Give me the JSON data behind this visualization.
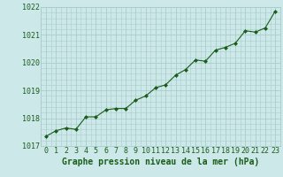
{
  "x": [
    0,
    1,
    2,
    3,
    4,
    5,
    6,
    7,
    8,
    9,
    10,
    11,
    12,
    13,
    14,
    15,
    16,
    17,
    18,
    19,
    20,
    21,
    22,
    23
  ],
  "y": [
    1017.35,
    1017.55,
    1017.65,
    1017.6,
    1018.05,
    1018.05,
    1018.3,
    1018.35,
    1018.35,
    1018.65,
    1018.8,
    1019.1,
    1019.2,
    1019.55,
    1019.75,
    1020.1,
    1020.05,
    1020.45,
    1020.55,
    1020.7,
    1021.15,
    1021.1,
    1021.25,
    1021.85
  ],
  "ylim": [
    1017.0,
    1022.0
  ],
  "yticks": [
    1017,
    1018,
    1019,
    1020,
    1021,
    1022
  ],
  "xticks": [
    0,
    1,
    2,
    3,
    4,
    5,
    6,
    7,
    8,
    9,
    10,
    11,
    12,
    13,
    14,
    15,
    16,
    17,
    18,
    19,
    20,
    21,
    22,
    23
  ],
  "xlabel": "Graphe pression niveau de la mer (hPa)",
  "line_color": "#1a5c1a",
  "marker_color": "#1a5c1a",
  "bg_color": "#cce8e8",
  "grid_color": "#aacccc",
  "tick_color": "#1a5c1a",
  "label_color": "#1a5c1a",
  "xlabel_fontsize": 7.0,
  "tick_fontsize": 6.0
}
